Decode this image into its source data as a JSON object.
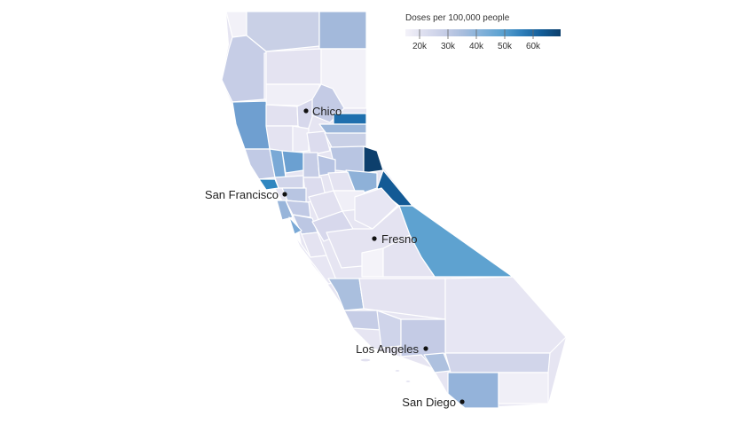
{
  "legend": {
    "title": "Doses per 100,000 people",
    "ticks": [
      "20k",
      "30k",
      "40k",
      "50k",
      "60k"
    ],
    "colors": [
      "#f4f2f9",
      "#dcdeef",
      "#c6cde6",
      "#a7bddd",
      "#7fb0d9",
      "#5aa1d0",
      "#2f7fba",
      "#135d98",
      "#0c3f6c"
    ]
  },
  "cities": [
    {
      "name": "Chico"
    },
    {
      "name": "San Francisco"
    },
    {
      "name": "Fresno"
    },
    {
      "name": "Los Angeles"
    },
    {
      "name": "San Diego"
    }
  ]
}
